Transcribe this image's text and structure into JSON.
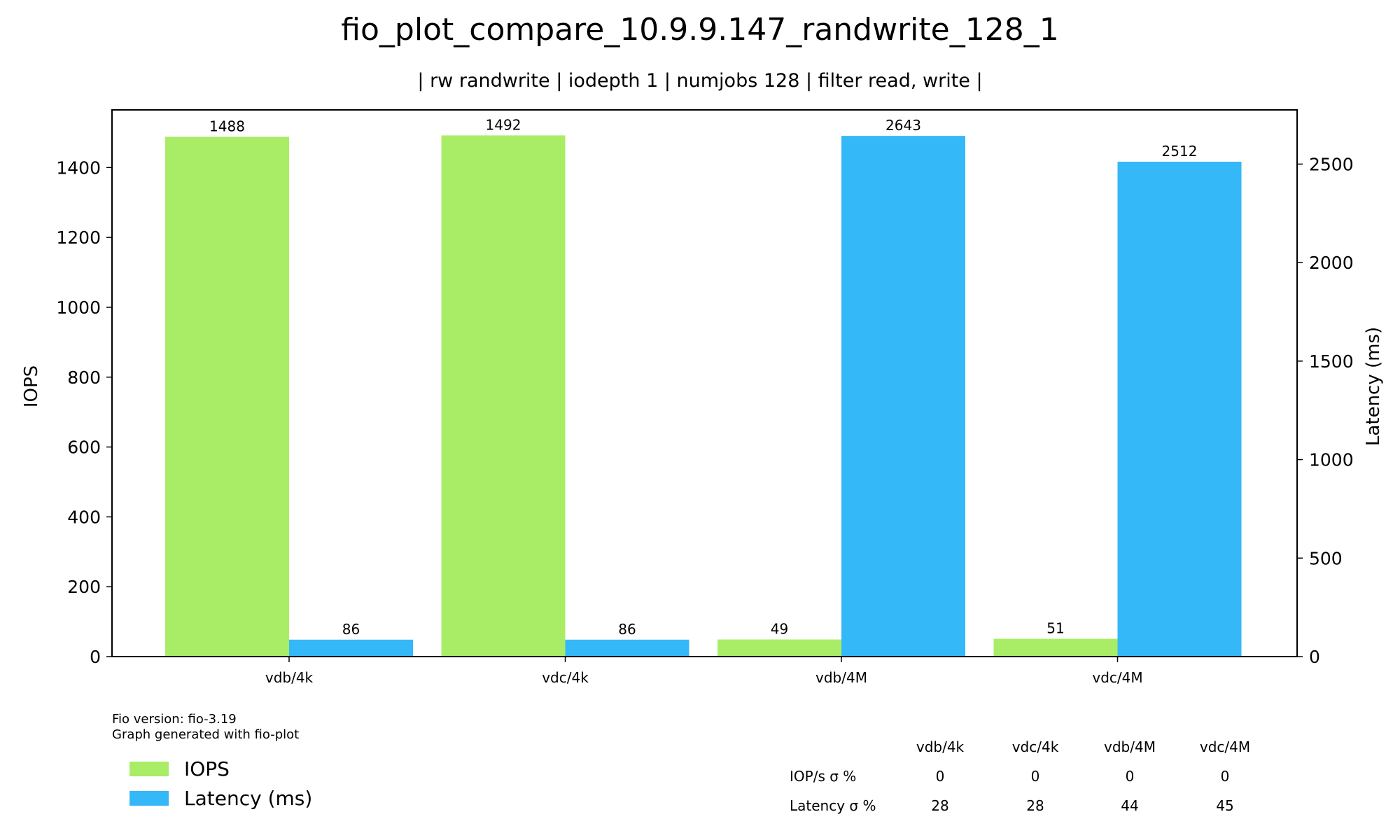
{
  "chart_data": {
    "type": "bar",
    "title": "fio_plot_compare_10.9.9.147_randwrite_128_1",
    "subtitle": "| rw randwrite | iodepth 1 | numjobs 128 | filter read, write |",
    "categories": [
      "vdb/4k",
      "vdc/4k",
      "vdb/4M",
      "vdc/4M"
    ],
    "series": [
      {
        "name": "IOPS",
        "axis": "left",
        "color": "#a9ec66",
        "values": [
          1488,
          1492,
          49,
          51
        ]
      },
      {
        "name": "Latency (ms)",
        "axis": "right",
        "color": "#35b8f8",
        "values": [
          86,
          86,
          2643,
          2512
        ]
      }
    ],
    "ylabel": "IOPS",
    "ylim": [
      0,
      1565
    ],
    "yticks": [
      0,
      200,
      400,
      600,
      800,
      1000,
      1200,
      1400
    ],
    "y2label": "Latency (ms)",
    "y2lim": [
      0,
      2775
    ],
    "y2ticks": [
      0,
      500,
      1000,
      1500,
      2000,
      2500
    ],
    "legend_position": "bottom-left",
    "grid": false
  },
  "footer": {
    "line1": "Fio version: fio-3.19",
    "line2": "Graph generated with fio-plot"
  },
  "stats_table": {
    "columns": [
      "vdb/4k",
      "vdc/4k",
      "vdb/4M",
      "vdc/4M"
    ],
    "rows": [
      {
        "label": "IOP/s σ %",
        "values": [
          "0",
          "0",
          "0",
          "0"
        ]
      },
      {
        "label": "Latency σ %",
        "values": [
          "28",
          "28",
          "44",
          "45"
        ]
      }
    ]
  }
}
